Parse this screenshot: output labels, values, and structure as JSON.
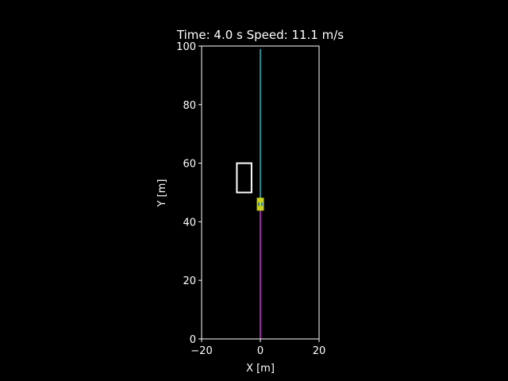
{
  "chart_data": {
    "type": "line",
    "title": "Time: 4.0 s Speed: 11.1 m/s",
    "xlabel": "X [m]",
    "ylabel": "Y [m]",
    "xlim": [
      -20,
      20
    ],
    "ylim": [
      0,
      100
    ],
    "x_ticks": [
      -20,
      0,
      20
    ],
    "x_tick_labels": [
      "−20",
      "0",
      "20"
    ],
    "y_ticks": [
      0,
      20,
      40,
      60,
      80,
      100
    ],
    "y_tick_labels": [
      "0",
      "20",
      "40",
      "60",
      "80",
      "100"
    ],
    "grid": false,
    "series": [
      {
        "name": "planned-path",
        "x": [
          0,
          0
        ],
        "y": [
          46,
          99
        ],
        "color": "#17becf"
      },
      {
        "name": "traveled-path",
        "x": [
          0,
          0
        ],
        "y": [
          0,
          46
        ],
        "color": "#d62be0"
      }
    ],
    "obstacle": {
      "x_min": -8,
      "x_max": -3,
      "y_min": 50,
      "y_max": 60,
      "color": "#ffffff"
    },
    "vehicle": {
      "x": 0,
      "y": 46,
      "width": 2.4,
      "length": 4.4,
      "color": "#c8d21e",
      "marker_color": "#1f7bbf"
    }
  }
}
